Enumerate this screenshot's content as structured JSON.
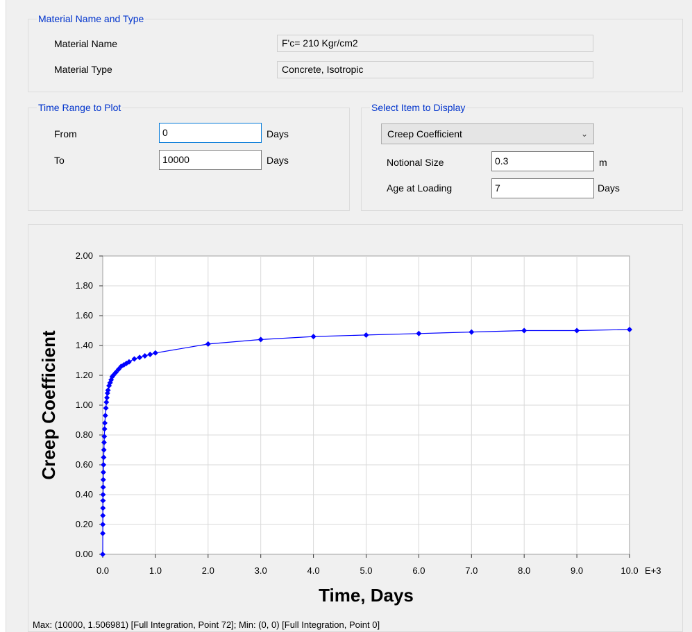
{
  "material_group": {
    "legend": "Material Name and Type",
    "name_label": "Material Name",
    "name_value": "F'c= 210 Kgr/cm2",
    "type_label": "Material Type",
    "type_value": "Concrete, Isotropic"
  },
  "time_range": {
    "legend": "Time Range to Plot",
    "from_label": "From",
    "from_value": "0",
    "from_unit": "Days",
    "to_label": "To",
    "to_value": "10000",
    "to_unit": "Days"
  },
  "select_item": {
    "legend": "Select Item to Display",
    "selected": "Creep Coefficient",
    "notional_label": "Notional Size",
    "notional_value": "0.3",
    "notional_unit": "m",
    "age_label": "Age at Loading",
    "age_value": "7",
    "age_unit": "Days"
  },
  "status_text": "Max: (10000, 1.506981)   [Full Integration, Point 72];   Min: (0, 0)   [Full Integration, Point 0]",
  "colors": {
    "legend_text": "#0033cc",
    "series": "#0000ff",
    "grid": "#d9d9d9"
  },
  "chart_data": {
    "type": "line",
    "title": "",
    "xlabel": "Time, Days",
    "ylabel": "Creep Coefficient",
    "x_unit_suffix": "E+3",
    "xlim": [
      0,
      10000
    ],
    "ylim": [
      0,
      2.0
    ],
    "x_ticks": [
      0,
      1000,
      2000,
      3000,
      4000,
      5000,
      6000,
      7000,
      8000,
      9000,
      10000
    ],
    "x_tick_labels": [
      "0.0",
      "1.0",
      "2.0",
      "3.0",
      "4.0",
      "5.0",
      "6.0",
      "7.0",
      "8.0",
      "9.0",
      "10.0"
    ],
    "y_ticks": [
      0,
      0.2,
      0.4,
      0.6,
      0.8,
      1.0,
      1.2,
      1.4,
      1.6,
      1.8,
      2.0
    ],
    "y_tick_labels": [
      "0.00",
      "0.20",
      "0.40",
      "0.60",
      "0.80",
      "1.00",
      "1.20",
      "1.40",
      "1.60",
      "1.80",
      "2.00"
    ],
    "grid": true,
    "series": [
      {
        "x": [
          0,
          1,
          2,
          3,
          4,
          5,
          6,
          8,
          10,
          12,
          15,
          18,
          22,
          26,
          30,
          35,
          40,
          50,
          60,
          70,
          80,
          90,
          100,
          120,
          140,
          160,
          180,
          200,
          250,
          300,
          350,
          400,
          450,
          500,
          600,
          700,
          800,
          900,
          1000,
          2000,
          3000,
          4000,
          5000,
          6000,
          7000,
          8000,
          9000,
          10000
        ],
        "y": [
          0,
          0.14,
          0.2,
          0.26,
          0.31,
          0.36,
          0.4,
          0.45,
          0.5,
          0.55,
          0.6,
          0.65,
          0.7,
          0.75,
          0.79,
          0.84,
          0.88,
          0.93,
          0.98,
          1.02,
          1.05,
          1.08,
          1.1,
          1.13,
          1.15,
          1.17,
          1.19,
          1.2,
          1.22,
          1.24,
          1.26,
          1.27,
          1.28,
          1.29,
          1.31,
          1.32,
          1.33,
          1.34,
          1.35,
          1.41,
          1.44,
          1.46,
          1.47,
          1.48,
          1.49,
          1.5,
          1.5,
          1.507
        ]
      }
    ]
  }
}
